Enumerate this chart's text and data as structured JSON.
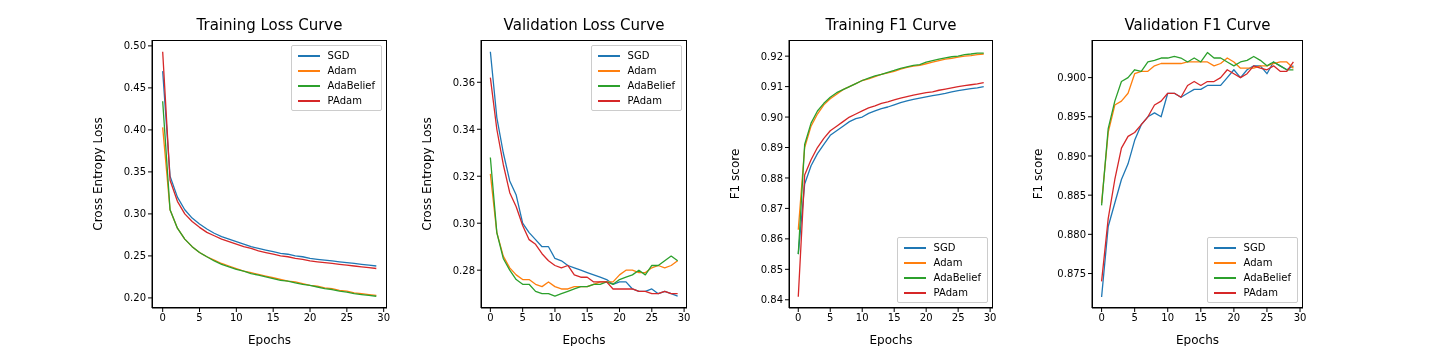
{
  "chart_data": [
    {
      "type": "line",
      "title": "Training Loss Curve",
      "xlabel": "Epochs",
      "ylabel": "Cross Entropy Loss",
      "legend": "top right",
      "x": [
        0,
        1,
        2,
        3,
        4,
        5,
        6,
        7,
        8,
        9,
        10,
        11,
        12,
        13,
        14,
        15,
        16,
        17,
        18,
        19,
        20,
        21,
        22,
        23,
        24,
        25,
        26,
        27,
        28,
        29
      ],
      "xlim": [
        -1.45,
        30.45
      ],
      "xticks": [
        0,
        5,
        10,
        15,
        20,
        25,
        30
      ],
      "ylim": [
        0.188,
        0.507
      ],
      "yticks": [
        {
          "value": 0.2,
          "label": "0.20"
        },
        0.25,
        {
          "value": 0.3,
          "label": "0.30"
        },
        0.35,
        {
          "value": 0.4,
          "label": "0.40"
        },
        0.45,
        {
          "value": 0.5,
          "label": "0.50"
        }
      ],
      "series": [
        {
          "name": "SGD",
          "color": "#1f77b4",
          "values": [
            0.47,
            0.345,
            0.32,
            0.305,
            0.295,
            0.288,
            0.282,
            0.277,
            0.273,
            0.27,
            0.267,
            0.264,
            0.261,
            0.259,
            0.257,
            0.255,
            0.253,
            0.252,
            0.25,
            0.249,
            0.247,
            0.246,
            0.245,
            0.244,
            0.243,
            0.242,
            0.241,
            0.24,
            0.239,
            0.238
          ]
        },
        {
          "name": "Adam",
          "color": "#ff7f0e",
          "values": [
            0.403,
            0.305,
            0.283,
            0.27,
            0.261,
            0.254,
            0.249,
            0.245,
            0.241,
            0.238,
            0.235,
            0.232,
            0.23,
            0.228,
            0.226,
            0.224,
            0.222,
            0.22,
            0.219,
            0.217,
            0.215,
            0.214,
            0.212,
            0.211,
            0.209,
            0.208,
            0.206,
            0.205,
            0.204,
            0.203
          ]
        },
        {
          "name": "AdaBelief",
          "color": "#2ca02c",
          "values": [
            0.434,
            0.305,
            0.283,
            0.27,
            0.261,
            0.254,
            0.249,
            0.244,
            0.24,
            0.237,
            0.234,
            0.232,
            0.229,
            0.227,
            0.225,
            0.223,
            0.221,
            0.22,
            0.218,
            0.216,
            0.215,
            0.213,
            0.211,
            0.21,
            0.208,
            0.207,
            0.205,
            0.204,
            0.203,
            0.202
          ]
        },
        {
          "name": "PAdam",
          "color": "#d62728",
          "values": [
            0.493,
            0.34,
            0.315,
            0.3,
            0.291,
            0.284,
            0.278,
            0.274,
            0.27,
            0.267,
            0.264,
            0.261,
            0.259,
            0.256,
            0.254,
            0.252,
            0.25,
            0.249,
            0.247,
            0.246,
            0.244,
            0.243,
            0.242,
            0.241,
            0.24,
            0.239,
            0.238,
            0.237,
            0.236,
            0.235
          ]
        }
      ]
    },
    {
      "type": "line",
      "title": "Validation Loss Curve",
      "xlabel": "Epochs",
      "ylabel": "Cross Entropy Loss",
      "legend": "top right",
      "x": [
        0,
        1,
        2,
        3,
        4,
        5,
        6,
        7,
        8,
        9,
        10,
        11,
        12,
        13,
        14,
        15,
        16,
        17,
        18,
        19,
        20,
        21,
        22,
        23,
        24,
        25,
        26,
        27,
        28,
        29
      ],
      "xlim": [
        -1.45,
        30.45
      ],
      "xticks": [
        0,
        5,
        10,
        15,
        20,
        25,
        30
      ],
      "ylim": [
        0.2639,
        0.378
      ],
      "yticks": [
        0.28,
        {
          "value": 0.3,
          "label": "0.30"
        },
        0.32,
        0.34,
        0.36
      ],
      "series": [
        {
          "name": "SGD",
          "color": "#1f77b4",
          "values": [
            0.373,
            0.345,
            0.33,
            0.318,
            0.312,
            0.3,
            0.296,
            0.293,
            0.29,
            0.29,
            0.285,
            0.284,
            0.282,
            0.281,
            0.28,
            0.279,
            0.278,
            0.277,
            0.276,
            0.274,
            0.275,
            0.275,
            0.272,
            0.271,
            0.271,
            0.272,
            0.27,
            0.271,
            0.27,
            0.269
          ]
        },
        {
          "name": "Adam",
          "color": "#ff7f0e",
          "values": [
            0.321,
            0.296,
            0.286,
            0.281,
            0.278,
            0.276,
            0.276,
            0.274,
            0.273,
            0.275,
            0.273,
            0.272,
            0.272,
            0.273,
            0.273,
            0.273,
            0.274,
            0.275,
            0.275,
            0.275,
            0.278,
            0.28,
            0.28,
            0.279,
            0.279,
            0.281,
            0.282,
            0.281,
            0.282,
            0.284
          ]
        },
        {
          "name": "AdaBelief",
          "color": "#2ca02c",
          "values": [
            0.328,
            0.296,
            0.285,
            0.28,
            0.276,
            0.274,
            0.274,
            0.271,
            0.27,
            0.27,
            0.269,
            0.27,
            0.271,
            0.272,
            0.273,
            0.273,
            0.274,
            0.274,
            0.275,
            0.274,
            0.276,
            0.277,
            0.278,
            0.28,
            0.278,
            0.282,
            0.282,
            0.284,
            0.286,
            0.284
          ]
        },
        {
          "name": "PAdam",
          "color": "#d62728",
          "values": [
            0.362,
            0.34,
            0.325,
            0.313,
            0.307,
            0.299,
            0.293,
            0.291,
            0.287,
            0.284,
            0.282,
            0.281,
            0.282,
            0.278,
            0.277,
            0.277,
            0.275,
            0.275,
            0.275,
            0.272,
            0.272,
            0.272,
            0.272,
            0.271,
            0.271,
            0.27,
            0.27,
            0.271,
            0.27,
            0.27
          ]
        }
      ]
    },
    {
      "type": "line",
      "title": "Training F1 Curve",
      "xlabel": "Epochs",
      "ylabel": "F1 score",
      "legend": "bottom right",
      "x": [
        0,
        1,
        2,
        3,
        4,
        5,
        6,
        7,
        8,
        9,
        10,
        11,
        12,
        13,
        14,
        15,
        16,
        17,
        18,
        19,
        20,
        21,
        22,
        23,
        24,
        25,
        26,
        27,
        28,
        29
      ],
      "xlim": [
        -1.45,
        30.45
      ],
      "xticks": [
        0,
        5,
        10,
        15,
        20,
        25,
        30
      ],
      "ylim": [
        0.8373,
        0.9253
      ],
      "yticks": [
        0.84,
        0.85,
        0.86,
        0.87,
        0.88,
        0.89,
        {
          "value": 0.9,
          "label": "0.90"
        },
        0.91,
        0.92
      ],
      "series": [
        {
          "name": "SGD",
          "color": "#1f77b4",
          "values": [
            0.855,
            0.878,
            0.884,
            0.888,
            0.891,
            0.894,
            0.8955,
            0.897,
            0.8985,
            0.8995,
            0.9,
            0.9012,
            0.902,
            0.9028,
            0.9033,
            0.904,
            0.9047,
            0.9053,
            0.9058,
            0.9062,
            0.9066,
            0.907,
            0.9074,
            0.9078,
            0.9083,
            0.9087,
            0.909,
            0.9093,
            0.9096,
            0.91
          ]
        },
        {
          "name": "Adam",
          "color": "#ff7f0e",
          "values": [
            0.863,
            0.89,
            0.897,
            0.901,
            0.904,
            0.906,
            0.9075,
            0.909,
            0.91,
            0.911,
            0.912,
            0.9125,
            0.9133,
            0.914,
            0.9145,
            0.915,
            0.9157,
            0.9163,
            0.9167,
            0.917,
            0.9175,
            0.918,
            0.9185,
            0.919,
            0.9193,
            0.9197,
            0.92,
            0.9202,
            0.9205,
            0.9207
          ]
        },
        {
          "name": "AdaBelief",
          "color": "#2ca02c",
          "values": [
            0.855,
            0.891,
            0.898,
            0.902,
            0.9045,
            0.9065,
            0.908,
            0.909,
            0.91,
            0.911,
            0.912,
            0.9128,
            0.9135,
            0.914,
            0.9147,
            0.9153,
            0.916,
            0.9165,
            0.917,
            0.9172,
            0.918,
            0.9185,
            0.919,
            0.9194,
            0.9198,
            0.92,
            0.9205,
            0.9207,
            0.921,
            0.921
          ]
        },
        {
          "name": "PAdam",
          "color": "#d62728",
          "values": [
            0.841,
            0.881,
            0.886,
            0.89,
            0.893,
            0.8955,
            0.897,
            0.8985,
            0.9,
            0.901,
            0.902,
            0.903,
            0.9037,
            0.9045,
            0.905,
            0.9056,
            0.9062,
            0.9067,
            0.9072,
            0.9076,
            0.908,
            0.9083,
            0.9088,
            0.9092,
            0.9096,
            0.91,
            0.9103,
            0.9106,
            0.9109,
            0.9113
          ]
        }
      ]
    },
    {
      "type": "line",
      "title": "Validation F1 Curve",
      "xlabel": "Epochs",
      "ylabel": "F1 score",
      "legend": "bottom right",
      "x": [
        0,
        1,
        2,
        3,
        4,
        5,
        6,
        7,
        8,
        9,
        10,
        11,
        12,
        13,
        14,
        15,
        16,
        17,
        18,
        19,
        20,
        21,
        22,
        23,
        24,
        25,
        26,
        27,
        28,
        29
      ],
      "xlim": [
        -1.45,
        30.45
      ],
      "xticks": [
        0,
        5,
        10,
        15,
        20,
        25,
        30
      ],
      "ylim": [
        0.8706,
        0.9048
      ],
      "yticks": [
        0.875,
        {
          "value": 0.88,
          "label": "0.880"
        },
        0.885,
        {
          "value": 0.89,
          "label": "0.890"
        },
        0.895,
        {
          "value": 0.9,
          "label": "0.900"
        }
      ],
      "series": [
        {
          "name": "SGD",
          "color": "#1f77b4",
          "values": [
            0.872,
            0.881,
            0.884,
            0.887,
            0.889,
            0.892,
            0.894,
            0.895,
            0.8955,
            0.895,
            0.898,
            0.898,
            0.8975,
            0.898,
            0.8985,
            0.8985,
            0.899,
            0.899,
            0.899,
            0.9,
            0.901,
            0.9,
            0.901,
            0.9015,
            0.9015,
            0.9005,
            0.902,
            0.9015,
            0.901,
            0.9015
          ]
        },
        {
          "name": "Adam",
          "color": "#ff7f0e",
          "values": [
            0.884,
            0.893,
            0.8965,
            0.897,
            0.898,
            0.9005,
            0.9008,
            0.9008,
            0.9015,
            0.9018,
            0.9018,
            0.9018,
            0.9018,
            0.902,
            0.902,
            0.902,
            0.902,
            0.9015,
            0.9018,
            0.9025,
            0.902,
            0.9012,
            0.9012,
            0.9012,
            0.9015,
            0.9015,
            0.9018,
            0.902,
            0.902,
            0.9012
          ]
        },
        {
          "name": "AdaBelief",
          "color": "#2ca02c",
          "values": [
            0.8837,
            0.8935,
            0.897,
            0.8995,
            0.9,
            0.901,
            0.9008,
            0.902,
            0.9022,
            0.9025,
            0.9025,
            0.9027,
            0.9025,
            0.902,
            0.9025,
            0.902,
            0.9032,
            0.9025,
            0.9025,
            0.902,
            0.9015,
            0.902,
            0.9022,
            0.9027,
            0.9022,
            0.9015,
            0.902,
            0.9015,
            0.901,
            0.901
          ]
        },
        {
          "name": "PAdam",
          "color": "#d62728",
          "values": [
            0.874,
            0.882,
            0.887,
            0.891,
            0.8925,
            0.893,
            0.894,
            0.895,
            0.8965,
            0.897,
            0.898,
            0.898,
            0.8975,
            0.899,
            0.8995,
            0.899,
            0.8995,
            0.8995,
            0.9,
            0.901,
            0.9005,
            0.9,
            0.9005,
            0.9015,
            0.9012,
            0.901,
            0.9015,
            0.9008,
            0.9008,
            0.902
          ]
        }
      ]
    }
  ]
}
